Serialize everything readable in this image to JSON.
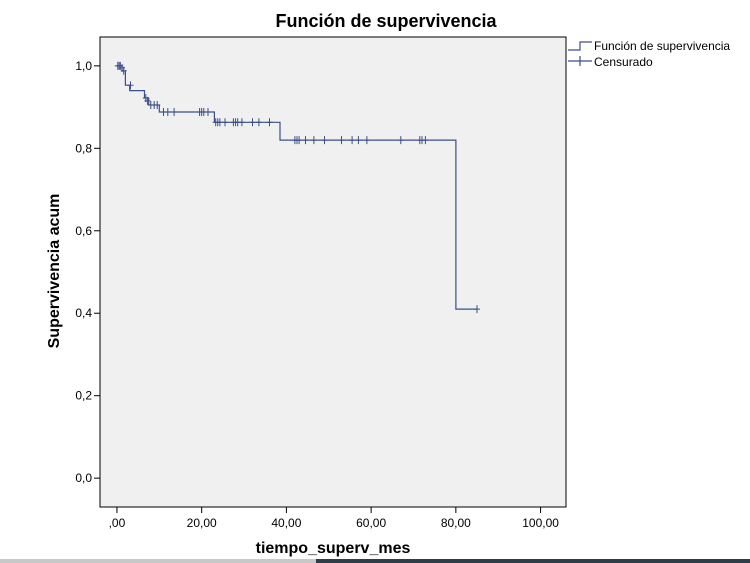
{
  "chart_data": {
    "type": "line",
    "title": "Función de supervivencia",
    "xlabel": "tiempo_superv_mes",
    "ylabel": "Supervivencia acum",
    "xlim": [
      -4,
      106
    ],
    "ylim": [
      -0.07,
      1.07
    ],
    "x_ticks": [
      0,
      20,
      40,
      60,
      80,
      100
    ],
    "x_tick_labels": [
      ",00",
      "20,00",
      "40,00",
      "60,00",
      "80,00",
      "100,00"
    ],
    "y_ticks": [
      0,
      0.2,
      0.4,
      0.6,
      0.8,
      1.0
    ],
    "y_tick_labels": [
      "0,0",
      "0,2",
      "0,4",
      "0,6",
      "0,8",
      "1,0"
    ],
    "grid": false,
    "legend_position": "top-right, outside plot",
    "colors": {
      "line": "#3a4f8a",
      "plot_bg": "#f0f0f0",
      "frame": "#000000"
    },
    "series": [
      {
        "name": "Función de supervivencia",
        "kind": "step",
        "points": [
          [
            0,
            1.0
          ],
          [
            1.2,
            1.0
          ],
          [
            1.2,
            0.988
          ],
          [
            2.0,
            0.988
          ],
          [
            2.0,
            0.953
          ],
          [
            3.0,
            0.953
          ],
          [
            3.0,
            0.94
          ],
          [
            6.5,
            0.94
          ],
          [
            6.5,
            0.922
          ],
          [
            7.5,
            0.922
          ],
          [
            7.5,
            0.905
          ],
          [
            10.0,
            0.905
          ],
          [
            10.0,
            0.888
          ],
          [
            23.0,
            0.888
          ],
          [
            23.0,
            0.863
          ],
          [
            38.5,
            0.863
          ],
          [
            38.5,
            0.82
          ],
          [
            80.0,
            0.82
          ],
          [
            80.0,
            0.41
          ],
          [
            85.0,
            0.41
          ]
        ]
      },
      {
        "name": "Censurado",
        "kind": "censor-marks",
        "points": [
          [
            0.2,
            1.0
          ],
          [
            0.5,
            1.0
          ],
          [
            0.8,
            1.0
          ],
          [
            1.2,
            0.995
          ],
          [
            1.6,
            0.988
          ],
          [
            3.2,
            0.953
          ],
          [
            6.8,
            0.922
          ],
          [
            7.2,
            0.915
          ],
          [
            8.0,
            0.905
          ],
          [
            8.8,
            0.905
          ],
          [
            9.5,
            0.905
          ],
          [
            11.0,
            0.888
          ],
          [
            12.0,
            0.888
          ],
          [
            13.5,
            0.888
          ],
          [
            19.5,
            0.888
          ],
          [
            20.0,
            0.888
          ],
          [
            20.5,
            0.888
          ],
          [
            21.5,
            0.888
          ],
          [
            23.3,
            0.863
          ],
          [
            23.8,
            0.863
          ],
          [
            24.3,
            0.863
          ],
          [
            25.5,
            0.863
          ],
          [
            27.5,
            0.863
          ],
          [
            28.0,
            0.863
          ],
          [
            28.5,
            0.863
          ],
          [
            29.5,
            0.863
          ],
          [
            32.0,
            0.863
          ],
          [
            33.5,
            0.863
          ],
          [
            36.0,
            0.863
          ],
          [
            42.0,
            0.82
          ],
          [
            42.5,
            0.82
          ],
          [
            43.0,
            0.82
          ],
          [
            44.5,
            0.82
          ],
          [
            46.5,
            0.82
          ],
          [
            49.0,
            0.82
          ],
          [
            53.0,
            0.82
          ],
          [
            55.5,
            0.82
          ],
          [
            57.0,
            0.82
          ],
          [
            59.0,
            0.82
          ],
          [
            67.0,
            0.82
          ],
          [
            71.5,
            0.82
          ],
          [
            72.0,
            0.82
          ],
          [
            72.8,
            0.82
          ],
          [
            85.0,
            0.41
          ]
        ]
      }
    ]
  }
}
